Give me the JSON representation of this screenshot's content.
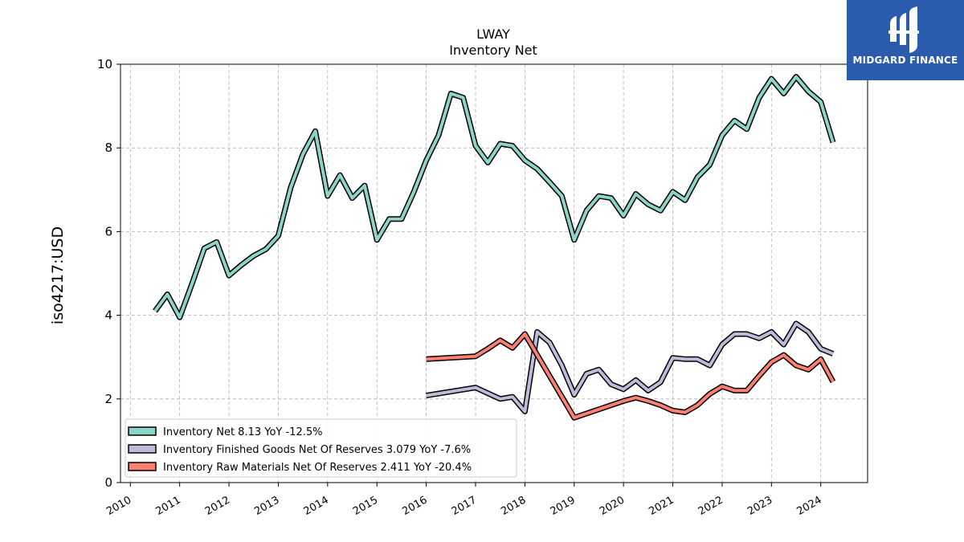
{
  "logo": {
    "text": "MIDGARD FINANCE"
  },
  "chart_data": {
    "type": "line",
    "title": "LWAY",
    "subtitle": "Inventory Net",
    "ylabel": "iso4217:USD",
    "xlabel": "",
    "ylim": [
      0,
      10
    ],
    "xlim": [
      2009.8,
      2024.95
    ],
    "yticks": [
      "0",
      "2",
      "4",
      "6",
      "8",
      "10"
    ],
    "xticks": [
      "2010",
      "2011",
      "2012",
      "2013",
      "2014",
      "2015",
      "2016",
      "2017",
      "2018",
      "2019",
      "2020",
      "2021",
      "2022",
      "2023",
      "2024"
    ],
    "grid": true,
    "legend_position": "bottom-left",
    "series": [
      {
        "name": "Inventory Net",
        "legend": "Inventory Net  8.13 YoY -12.5%",
        "color": "#8dd3c7",
        "x": [
          2010.5,
          2010.75,
          2011.0,
          2011.25,
          2011.5,
          2011.75,
          2012.0,
          2012.25,
          2012.5,
          2012.75,
          2013.0,
          2013.25,
          2013.5,
          2013.75,
          2014.0,
          2014.25,
          2014.5,
          2014.75,
          2015.0,
          2015.25,
          2015.5,
          2015.75,
          2016.0,
          2016.25,
          2016.5,
          2016.75,
          2017.0,
          2017.25,
          2017.5,
          2017.75,
          2018.0,
          2018.25,
          2018.5,
          2018.75,
          2019.0,
          2019.25,
          2019.5,
          2019.75,
          2020.0,
          2020.25,
          2020.5,
          2020.75,
          2021.0,
          2021.25,
          2021.5,
          2021.75,
          2022.0,
          2022.25,
          2022.5,
          2022.75,
          2023.0,
          2023.25,
          2023.5,
          2023.75,
          2024.0,
          2024.25
        ],
        "values": [
          4.1,
          4.5,
          3.95,
          4.75,
          5.6,
          5.75,
          4.95,
          5.2,
          5.42,
          5.58,
          5.9,
          7.05,
          7.85,
          8.4,
          6.85,
          7.35,
          6.8,
          7.1,
          5.8,
          6.3,
          6.3,
          6.95,
          7.7,
          8.3,
          9.3,
          9.2,
          8.05,
          7.65,
          8.1,
          8.05,
          7.7,
          7.5,
          7.18,
          6.85,
          5.8,
          6.5,
          6.85,
          6.8,
          6.38,
          6.9,
          6.65,
          6.5,
          6.95,
          6.75,
          7.3,
          7.6,
          8.3,
          8.65,
          8.45,
          9.2,
          9.65,
          9.3,
          9.7,
          9.35,
          9.1,
          8.13
        ]
      },
      {
        "name": "Inventory Finished Goods Net Of Reserves",
        "legend": "Inventory Finished Goods Net Of Reserves  3.079 YoY -7.6%",
        "color": "#bebada",
        "x": [
          2016.0,
          2017.0,
          2017.5,
          2017.75,
          2018.0,
          2018.25,
          2018.5,
          2018.75,
          2019.0,
          2019.25,
          2019.5,
          2019.75,
          2020.0,
          2020.25,
          2020.5,
          2020.75,
          2021.0,
          2021.25,
          2021.5,
          2021.75,
          2022.0,
          2022.25,
          2022.5,
          2022.75,
          2023.0,
          2023.25,
          2023.5,
          2023.75,
          2024.0,
          2024.25
        ],
        "values": [
          2.08,
          2.27,
          2.0,
          2.05,
          1.7,
          3.6,
          3.35,
          2.8,
          2.1,
          2.6,
          2.7,
          2.35,
          2.23,
          2.45,
          2.2,
          2.4,
          2.98,
          2.95,
          2.95,
          2.8,
          3.3,
          3.55,
          3.55,
          3.45,
          3.6,
          3.3,
          3.8,
          3.6,
          3.2,
          3.079
        ]
      },
      {
        "name": "Inventory Raw Materials Net Of Reserves",
        "legend": "Inventory Raw Materials Net Of Reserves  2.411 YoY -20.4%",
        "color": "#fb8072",
        "x": [
          2016.0,
          2017.0,
          2017.25,
          2017.5,
          2017.75,
          2018.0,
          2019.0,
          2019.5,
          2020.0,
          2020.25,
          2020.5,
          2020.75,
          2021.0,
          2021.25,
          2021.5,
          2021.75,
          2022.0,
          2022.25,
          2022.5,
          2022.75,
          2023.0,
          2023.25,
          2023.5,
          2023.75,
          2024.0,
          2024.25
        ],
        "values": [
          2.95,
          3.02,
          3.2,
          3.4,
          3.22,
          3.55,
          1.55,
          1.75,
          1.95,
          2.03,
          1.95,
          1.85,
          1.72,
          1.68,
          1.85,
          2.12,
          2.3,
          2.2,
          2.2,
          2.55,
          2.88,
          3.05,
          2.8,
          2.7,
          2.95,
          2.411
        ]
      }
    ]
  }
}
